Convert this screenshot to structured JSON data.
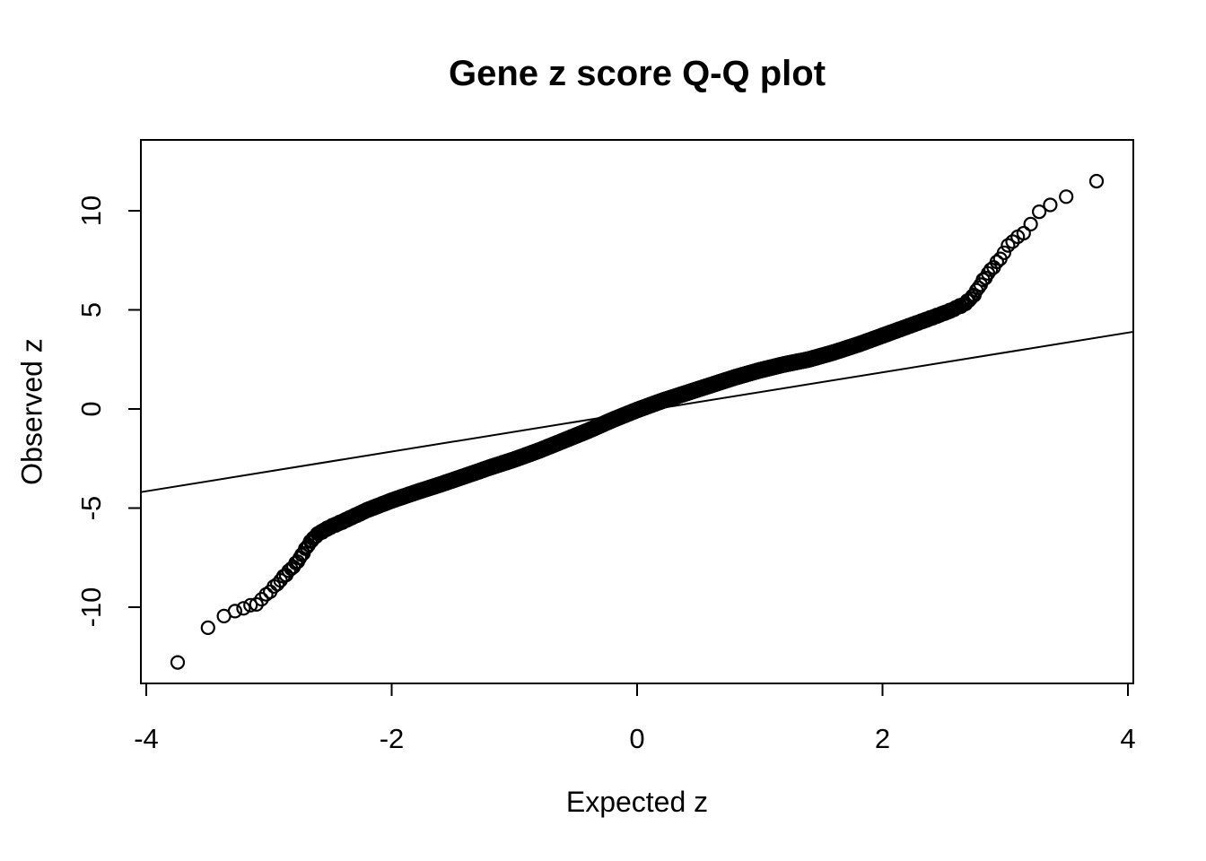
{
  "title": "Gene z score Q-Q plot",
  "colors": {
    "foreground": "#000000",
    "background": "#ffffff"
  },
  "chart_data": {
    "type": "scatter",
    "title": "Gene z score Q-Q plot",
    "xlabel": "Expected z",
    "ylabel": "Observed z",
    "x_ticks": [
      -4,
      -2,
      0,
      2,
      4
    ],
    "y_ticks": [
      -10,
      -5,
      0,
      5,
      10
    ],
    "xlim": [
      -4.04,
      4.04
    ],
    "ylim": [
      -13.8,
      13.6
    ],
    "grid": false,
    "legend_position": "none",
    "point_style": {
      "shape": "open-circle",
      "color": "#000000",
      "radius_px": 7,
      "stroke_px": 2.2
    },
    "reference_line": {
      "slope": 1,
      "intercept": -0.15,
      "color": "#000000",
      "style": "solid"
    },
    "n_points": 6900,
    "quantile_curve_anchors": {
      "expected": [
        -3.8,
        -3.74,
        -3.6,
        -3.5,
        -3.45,
        -3.37,
        -3.3,
        -3.22,
        -3.15,
        -3.08,
        -3.02,
        -2.96,
        -2.9,
        -2.84,
        -2.78,
        -2.73,
        -2.69,
        -2.65,
        -2.6,
        -2.5,
        -2.4,
        -2.2,
        -2.0,
        -1.8,
        -1.6,
        -1.4,
        -1.2,
        -1.0,
        -0.8,
        -0.6,
        -0.4,
        -0.2,
        0.0,
        0.2,
        0.4,
        0.6,
        0.8,
        1.0,
        1.2,
        1.4,
        1.6,
        1.8,
        2.0,
        2.2,
        2.4,
        2.55,
        2.67,
        2.74,
        2.8,
        2.85,
        2.9,
        2.95,
        3.0,
        3.05,
        3.1,
        3.16,
        3.2,
        3.26,
        3.31,
        3.37,
        3.45,
        3.57,
        3.74,
        3.8
      ],
      "observed": [
        -13.1,
        -12.8,
        -11.35,
        -11.0,
        -10.8,
        -10.5,
        -10.25,
        -10.05,
        -9.95,
        -9.75,
        -9.35,
        -9.0,
        -8.6,
        -8.2,
        -7.8,
        -7.35,
        -6.95,
        -6.6,
        -6.3,
        -5.95,
        -5.68,
        -5.1,
        -4.62,
        -4.2,
        -3.8,
        -3.38,
        -2.95,
        -2.55,
        -2.1,
        -1.6,
        -1.1,
        -0.55,
        -0.05,
        0.4,
        0.8,
        1.2,
        1.6,
        1.95,
        2.25,
        2.5,
        2.85,
        3.25,
        3.7,
        4.15,
        4.6,
        4.95,
        5.3,
        5.7,
        6.3,
        6.75,
        7.15,
        7.5,
        8.0,
        8.45,
        8.65,
        8.9,
        9.3,
        9.85,
        10.0,
        10.35,
        10.65,
        10.8,
        11.45,
        11.6
      ]
    },
    "visible_tail_points": {
      "lower": [
        [
          -3.74,
          -12.8
        ],
        [
          -3.57,
          -11.3
        ],
        [
          -3.45,
          -10.8
        ],
        [
          -3.37,
          -10.5
        ],
        [
          -3.3,
          -10.25
        ],
        [
          -3.22,
          -10.0
        ],
        [
          -3.14,
          -9.85
        ],
        [
          -3.04,
          -9.7
        ],
        [
          -2.96,
          -9.0
        ],
        [
          -2.9,
          -8.6
        ],
        [
          -2.84,
          -8.2
        ],
        [
          -2.78,
          -7.8
        ],
        [
          -2.7,
          -7.0
        ]
      ],
      "upper": [
        [
          2.8,
          6.6
        ],
        [
          2.88,
          7.1
        ],
        [
          2.96,
          7.7
        ],
        [
          3.0,
          8.0
        ],
        [
          3.1,
          8.65
        ],
        [
          3.2,
          9.3
        ],
        [
          3.26,
          9.85
        ],
        [
          3.3,
          9.95
        ],
        [
          3.37,
          10.35
        ],
        [
          3.45,
          10.65
        ],
        [
          3.57,
          10.8
        ],
        [
          3.74,
          11.45
        ]
      ]
    }
  }
}
